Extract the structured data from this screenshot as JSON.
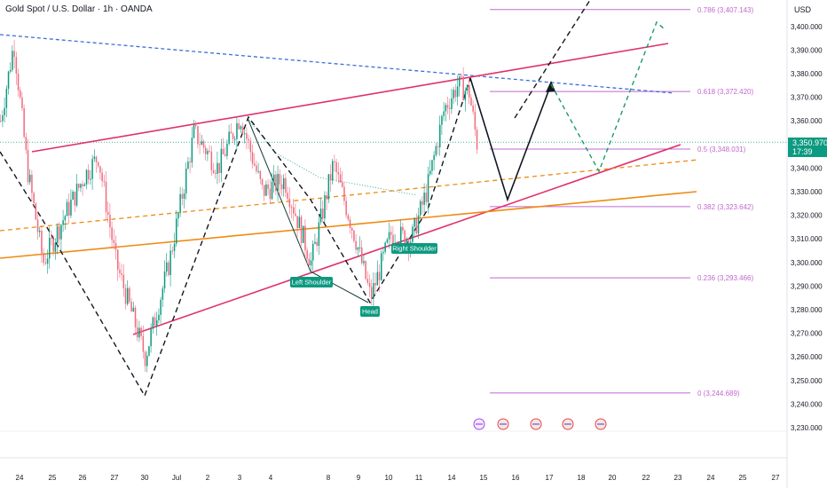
{
  "header": {
    "title": "Gold Spot / U.S. Dollar · 1h · OANDA",
    "currency": "USD"
  },
  "price_tag": {
    "price": "3,350.970",
    "countdown": "17:39"
  },
  "chart_data": {
    "type": "line",
    "title": "Gold Spot / U.S. Dollar · 1h · OANDA",
    "ylabel": "USD",
    "ylim": [
      3228,
      3416
    ],
    "y_ticks": [
      3230,
      3240,
      3250,
      3260,
      3270,
      3280,
      3290,
      3300,
      3310,
      3320,
      3330,
      3340,
      3350,
      3360,
      3370,
      3380,
      3390,
      3400
    ],
    "y_tick_labels": [
      "3,230.000",
      "3,240.000",
      "3,250.000",
      "3,260.000",
      "3,270.000",
      "3,280.000",
      "3,290.000",
      "3,300.000",
      "3,310.000",
      "3,320.000",
      "3,330.000",
      "3,340.000",
      "3,350.000",
      "3,360.000",
      "3,370.000",
      "3,380.000",
      "3,390.000",
      "3,400.000"
    ],
    "x_tick_labels": [
      "24",
      "25",
      "26",
      "27",
      "30",
      "Jul",
      "2",
      "3",
      "4",
      "8",
      "9",
      "10",
      "11",
      "14",
      "15",
      "16",
      "17",
      "18",
      "20",
      "22",
      "23",
      "24",
      "25",
      "27"
    ],
    "fibonacci": [
      {
        "label": "0.786 (3,407.143)",
        "value": 3407.143
      },
      {
        "label": "0.618 (3,372.420)",
        "value": 3372.42
      },
      {
        "label": "0.5 (3,348.031)",
        "value": 3348.031
      },
      {
        "label": "0.382 (3,323.642)",
        "value": 3323.642
      },
      {
        "label": "0.236 (3,293.466)",
        "value": 3293.466
      },
      {
        "label": "0 (3,244.689)",
        "value": 3244.689
      }
    ],
    "annotations": [
      "Left Shoulder",
      "Head",
      "Right Shoulder"
    ],
    "last_price": 3350.97,
    "grid": false,
    "colors": {
      "up": "#0c9a80",
      "down": "#ef6a7e",
      "channel": "#e0306a",
      "support": "#ef8a12",
      "trend_blue": "#3d6ed8",
      "fib": "#c268d0",
      "projection_green": "#1b9a6a",
      "label_bg": "#0c9a80"
    }
  }
}
